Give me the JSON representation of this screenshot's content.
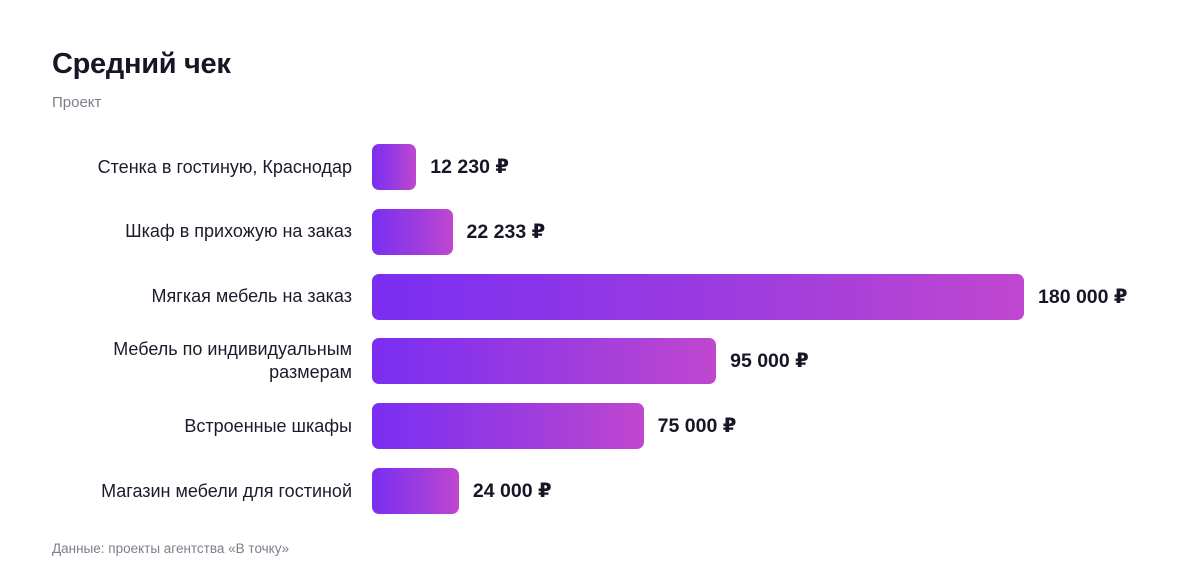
{
  "header": {
    "title": "Средний чек",
    "subtitle": "Проект"
  },
  "footer": {
    "source": "Данные: проекты агентства «В точку»"
  },
  "chart_data": {
    "type": "bar",
    "orientation": "horizontal",
    "title": "Средний чек",
    "subtitle": "Проект",
    "categories": [
      "Стенка в гостиную, Краснодар",
      "Шкаф в прихожую на заказ",
      "Мягкая мебель на заказ",
      "Мебель по индивидуальным размерам",
      "Встроенные шкафы",
      "Магазин мебели для гостиной"
    ],
    "values": [
      12230,
      22233,
      180000,
      95000,
      75000,
      24000
    ],
    "value_labels": [
      "12 230 ₽",
      "22 233 ₽",
      "180 000 ₽",
      "95 000 ₽",
      "75 000 ₽",
      "24 000 ₽"
    ],
    "unit": "₽",
    "xlim": [
      0,
      180000
    ],
    "grid": false,
    "colors": {
      "bar_start": "#7a2ef2",
      "bar_end": "#c047cf"
    }
  }
}
